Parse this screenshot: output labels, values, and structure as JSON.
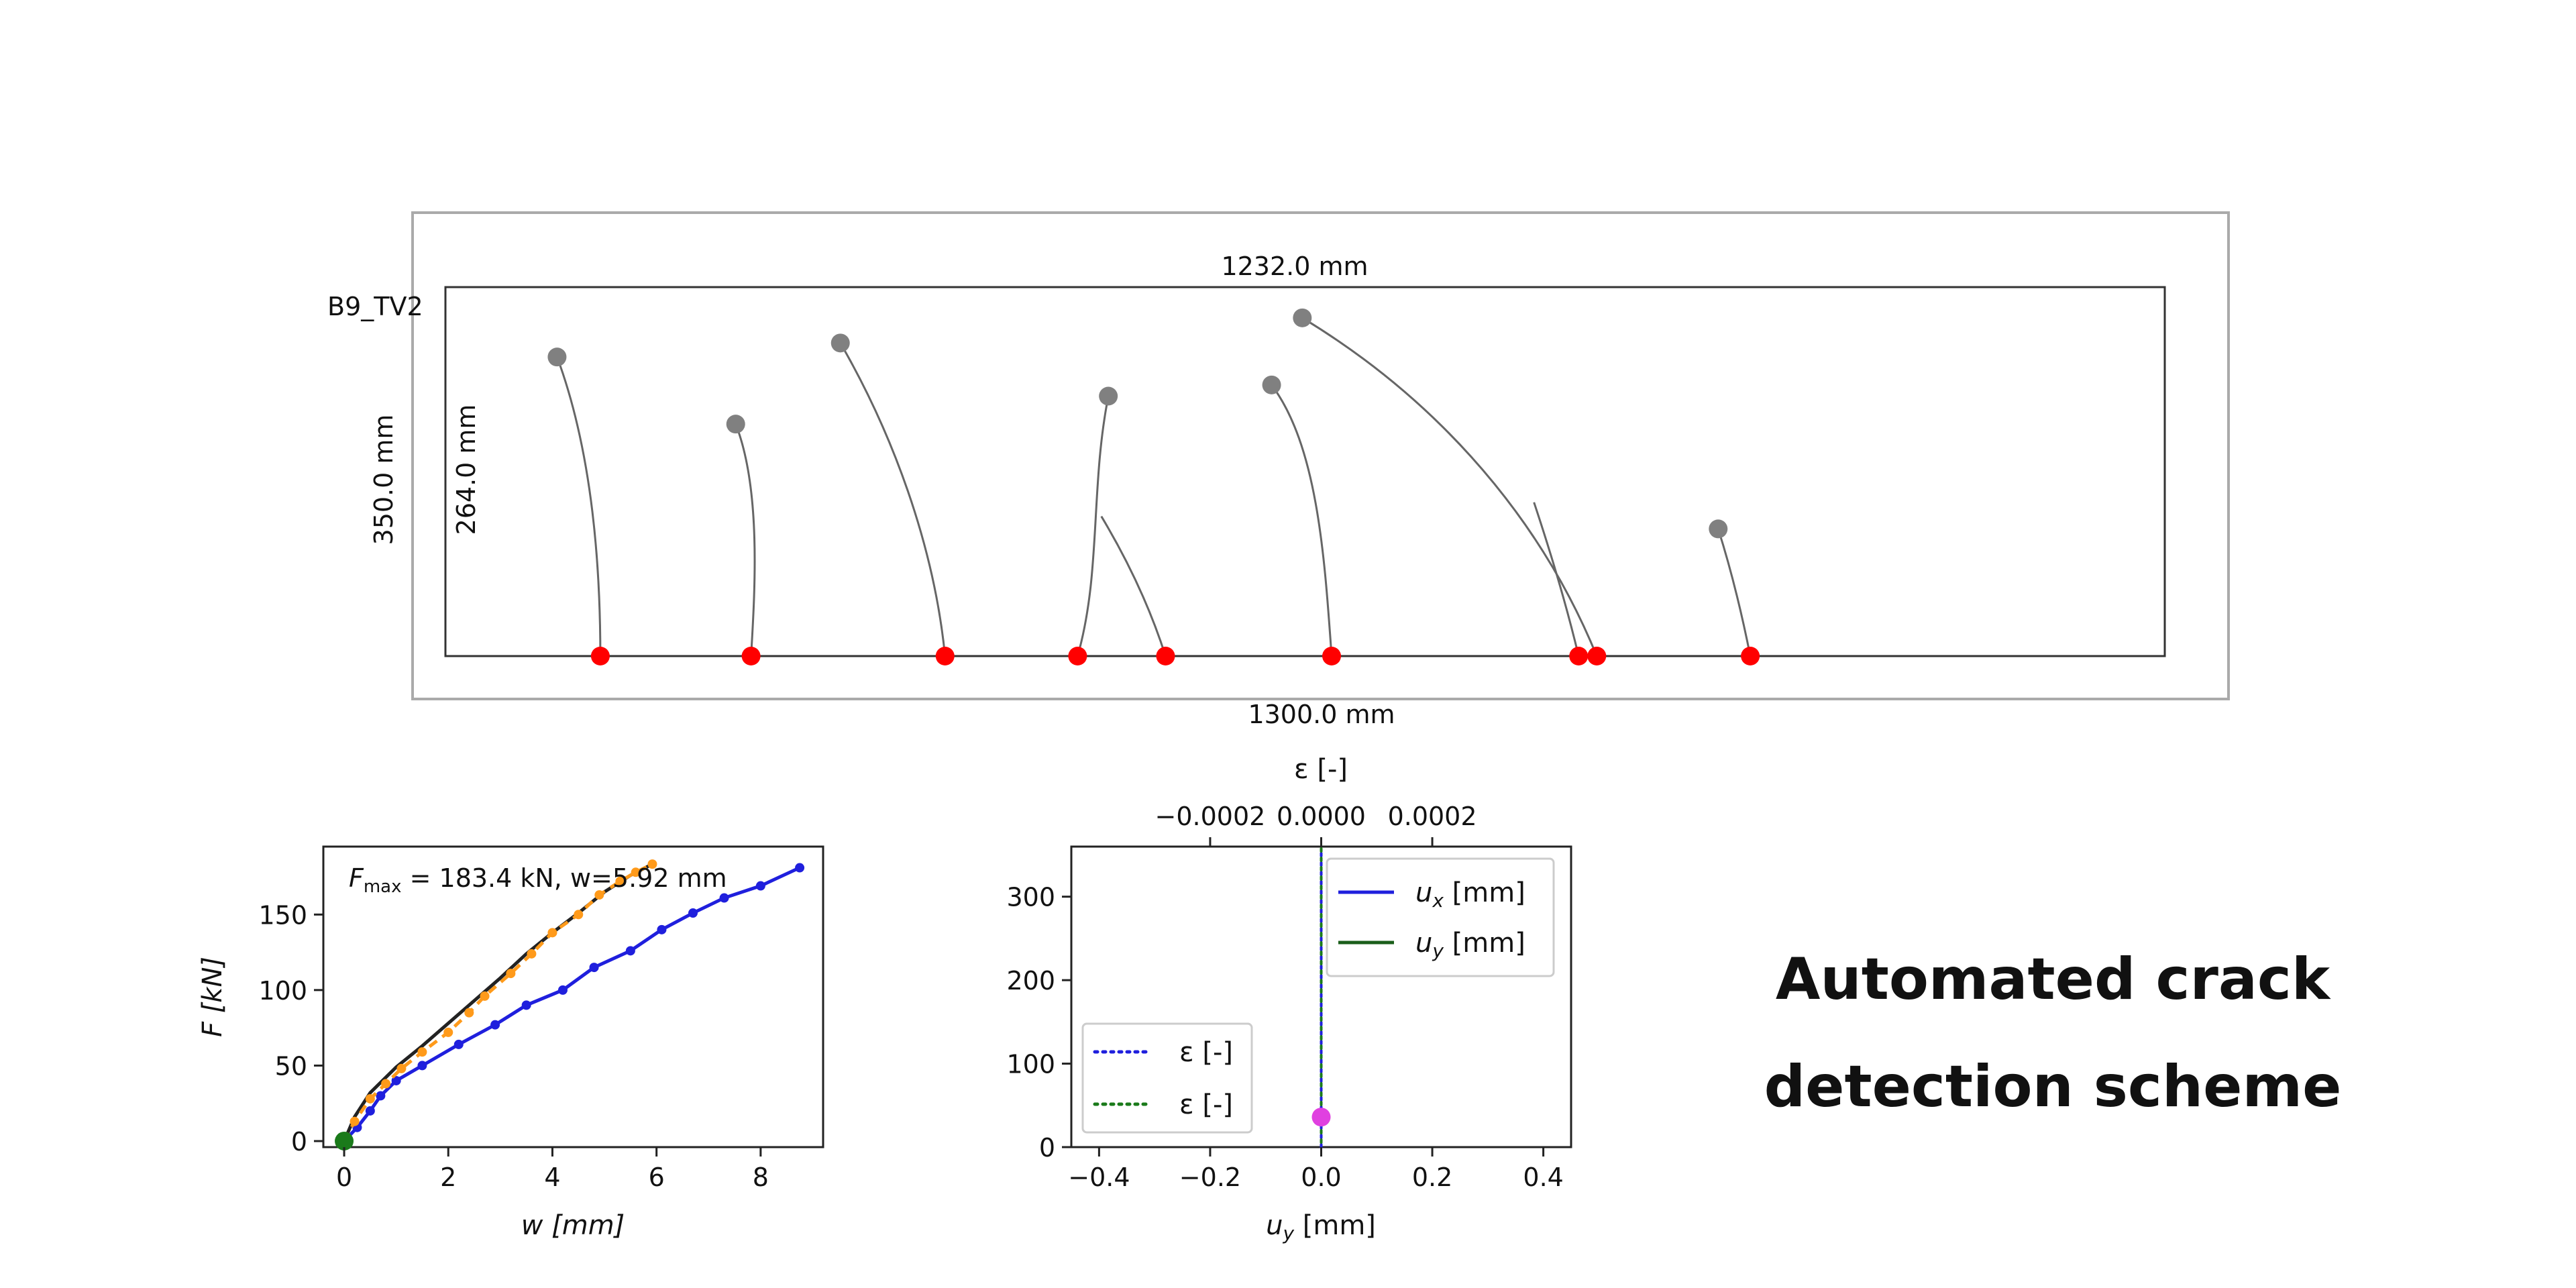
{
  "specimen": {
    "label": "B9_TV2",
    "outer_width_label": "1300.0 mm",
    "outer_height_label": "350.0 mm",
    "inner_width_label": "1232.0 mm",
    "inner_height_label": "264.0 mm",
    "tip_color": "#808080",
    "base_color": "#ff0000",
    "cracks": [
      {
        "tip": [
          80,
          214
        ],
        "base": [
          111,
          0
        ],
        "path": [
          [
            80,
            214
          ],
          [
            100,
            160
          ],
          [
            111,
            90
          ],
          [
            111,
            0
          ]
        ]
      },
      {
        "tip": [
          208,
          166
        ],
        "base": [
          219,
          0
        ],
        "path": [
          [
            208,
            166
          ],
          [
            226,
            120
          ],
          [
            222,
            50
          ],
          [
            219,
            0
          ]
        ]
      },
      {
        "tip": [
          283,
          224
        ],
        "base": [
          358,
          0
        ],
        "path": [
          [
            283,
            224
          ],
          [
            320,
            160
          ],
          [
            350,
            80
          ],
          [
            358,
            0
          ]
        ]
      },
      {
        "tip": [
          475,
          186
        ],
        "base": [
          453,
          0
        ],
        "path": [
          [
            475,
            186
          ],
          [
            462,
            120
          ],
          [
            470,
            60
          ],
          [
            453,
            0
          ]
        ]
      },
      {
        "tip": [
          475,
          186
        ],
        "base": [
          516,
          0
        ],
        "path": [
          [
            470,
            100
          ],
          [
            500,
            50
          ],
          [
            516,
            0
          ]
        ]
      },
      {
        "tip": [
          592,
          194
        ],
        "base": [
          635,
          0
        ],
        "path": [
          [
            592,
            194
          ],
          [
            625,
            150
          ],
          [
            630,
            70
          ],
          [
            635,
            0
          ]
        ]
      },
      {
        "tip": [
          614,
          242
        ],
        "base": [
          825,
          0
        ],
        "path": [
          [
            614,
            242
          ],
          [
            700,
            190
          ],
          [
            780,
            110
          ],
          [
            825,
            0
          ]
        ]
      },
      {
        "tip": [
          614,
          242
        ],
        "base": [
          812,
          0
        ],
        "path": [
          [
            780,
            110
          ],
          [
            800,
            50
          ],
          [
            812,
            0
          ]
        ]
      },
      {
        "tip": [
          912,
          91
        ],
        "base": [
          935,
          0
        ],
        "path": [
          [
            912,
            91
          ],
          [
            925,
            50
          ],
          [
            935,
            0
          ]
        ]
      }
    ]
  },
  "chart_data": [
    {
      "type": "line",
      "xlabel": "w [mm]",
      "ylabel": "F [kN]",
      "xlim": [
        -0.4,
        9.2
      ],
      "ylim": [
        -4,
        195
      ],
      "xticks": [
        0,
        2,
        4,
        6,
        8
      ],
      "yticks": [
        0,
        50,
        100,
        150
      ],
      "annotation": "F_max = 183.4 kN, w=5.92 mm",
      "annotation_parts": {
        "f_label": "F",
        "f_sub": "max",
        "rest": " = 183.4 kN, w=5.92 mm"
      },
      "series": [
        {
          "color": "#1f1fdd",
          "marker": "dot",
          "x": [
            0,
            0.25,
            0.5,
            0.7,
            1.0,
            1.5,
            2.2,
            2.9,
            3.5,
            4.2,
            4.8,
            5.5,
            6.1,
            6.7,
            7.3,
            8.0,
            8.75
          ],
          "y": [
            0,
            9,
            20,
            30,
            40,
            50,
            64,
            77,
            90,
            100,
            115,
            126,
            140,
            151,
            161,
            169,
            181
          ]
        },
        {
          "color": "#222222",
          "marker": "none",
          "x": [
            0,
            0.2,
            0.5,
            1.0,
            1.5,
            2.0,
            2.5,
            3.0,
            3.5,
            4.0,
            4.5,
            5.0,
            5.5,
            5.92
          ],
          "y": [
            0,
            16,
            32,
            49,
            63,
            78,
            93,
            108,
            124,
            138,
            151,
            165,
            176,
            183.4
          ]
        },
        {
          "color": "#ff9a1a",
          "marker": "dot",
          "x": [
            0,
            0.2,
            0.5,
            0.8,
            1.1,
            1.5,
            2.0,
            2.4,
            2.7,
            3.2,
            3.6,
            4.0,
            4.5,
            4.9,
            5.3,
            5.6,
            5.92
          ],
          "y": [
            0,
            13,
            28,
            38,
            48,
            59,
            72,
            85,
            96,
            111,
            124,
            138,
            150,
            163,
            172,
            178,
            183.4
          ]
        },
        {
          "color": "#1a7a1a",
          "marker": "dot",
          "x": [
            0
          ],
          "y": [
            0
          ]
        }
      ]
    },
    {
      "type": "line",
      "xlabel": "u_y [mm]",
      "xlabel_parts": {
        "sym": "u",
        "sub": "y",
        "rest": " [mm]"
      },
      "ylabel": "",
      "top_xlabel": "ε [-]",
      "xlim": [
        -0.45,
        0.45
      ],
      "ylim": [
        0,
        360
      ],
      "xticks": [
        -0.4,
        -0.2,
        0.0,
        0.2,
        0.4
      ],
      "xticklabels": [
        "−0.4",
        "−0.2",
        "0.0",
        "0.2",
        "0.4"
      ],
      "yticks": [
        0,
        100,
        200,
        300
      ],
      "top_xlim": [
        -0.00045,
        0.00045
      ],
      "top_xticks": [
        -0.0002,
        0.0,
        0.0002
      ],
      "top_xticklabels": [
        "−0.0002",
        "0.0000",
        "0.0002"
      ],
      "legend_upper_right": [
        {
          "label": "u_x [mm]",
          "sym": "u",
          "sub": "x",
          "rest": " [mm]",
          "color": "#1f1fdd",
          "style": "solid"
        },
        {
          "label": "u_y [mm]",
          "sym": "u",
          "sub": "y",
          "rest": " [mm]",
          "color": "#1a5e1a",
          "style": "solid"
        }
      ],
      "legend_lower_left": [
        {
          "label": "ε [-]",
          "color": "#1f1fdd",
          "style": "dotted"
        },
        {
          "label": "ε [-]",
          "color": "#1a7a1a",
          "style": "dotted"
        }
      ],
      "series": [
        {
          "color": "#1f1fdd",
          "style": "dotted",
          "x": [
            0,
            0
          ],
          "y": [
            0,
            360
          ]
        },
        {
          "color": "#1a7a1a",
          "style": "dotted",
          "x": [
            0,
            0
          ],
          "y": [
            0,
            360
          ]
        }
      ],
      "marker_point": {
        "x": 0.0,
        "y": 36,
        "color": "#e040e0"
      }
    }
  ],
  "side_title": {
    "line1": "Automated crack",
    "line2": "detection scheme"
  }
}
